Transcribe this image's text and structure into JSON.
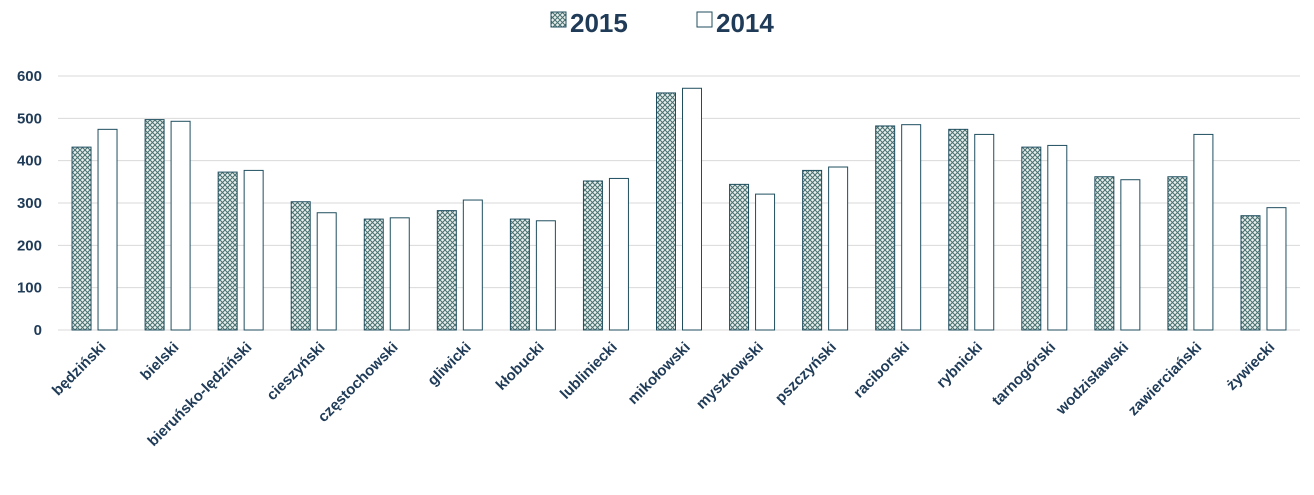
{
  "chart_data": {
    "type": "bar",
    "title": "",
    "xlabel": "",
    "ylabel": "",
    "ylim": [
      0,
      600
    ],
    "yticks": [
      0,
      100,
      200,
      300,
      400,
      500,
      600
    ],
    "grid": true,
    "legend_position": "top-center",
    "categories": [
      "będziński",
      "bielski",
      "bieruńsko-lędziński",
      "cieszyński",
      "częstochowski",
      "gliwicki",
      "kłobucki",
      "lubliniecki",
      "mikołowski",
      "myszkowski",
      "pszczyński",
      "raciborski",
      "rybnicki",
      "tarnogórski",
      "wodzisławski",
      "zawierciański",
      "żywiecki"
    ],
    "series": [
      {
        "name": "2015",
        "pattern": "crosshatch",
        "color": "#1f4e5f",
        "values": [
          432,
          497,
          373,
          303,
          262,
          282,
          262,
          352,
          560,
          344,
          377,
          482,
          474,
          432,
          362,
          362,
          270
        ]
      },
      {
        "name": "2014",
        "pattern": "solid",
        "color": "#ffffff",
        "values": [
          474,
          493,
          377,
          277,
          265,
          307,
          258,
          358,
          571,
          321,
          385,
          485,
          462,
          436,
          355,
          462,
          289
        ]
      }
    ],
    "colors": {
      "axis_text": "#1f3b57",
      "grid": "#d9d9d9",
      "bar_outline": "#1f4e5f",
      "hatch": "#5a8a8a"
    }
  }
}
